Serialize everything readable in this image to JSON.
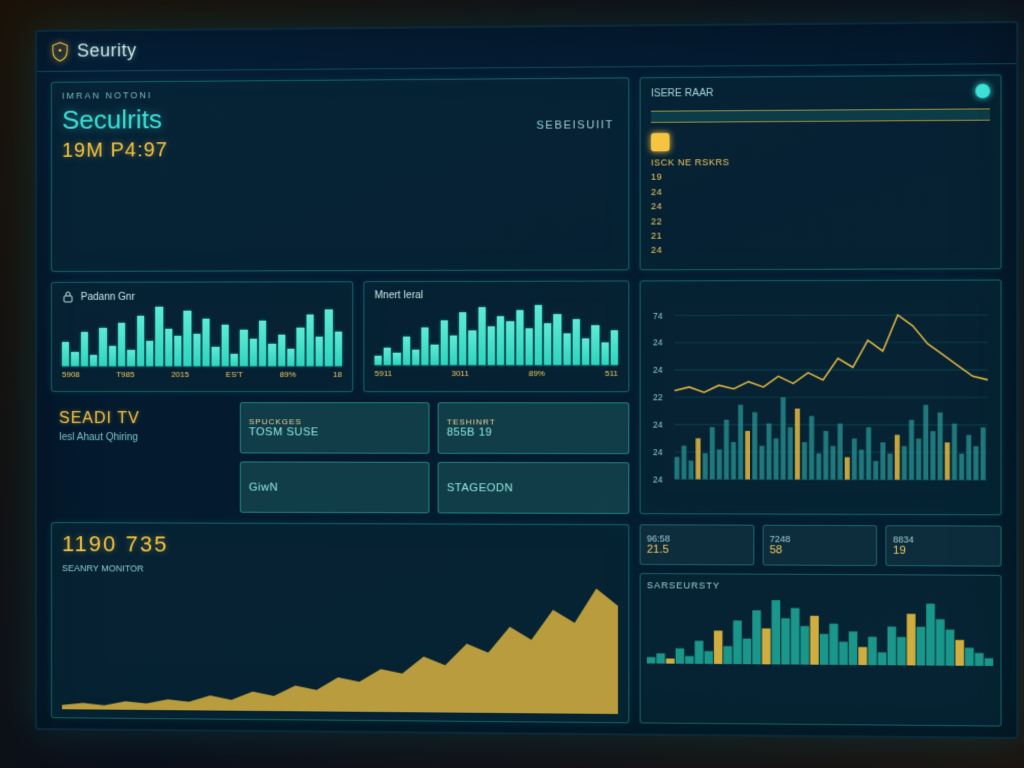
{
  "colors": {
    "bg": "#05203a",
    "teal": "#2dd4bf",
    "teal_light": "#5eead4",
    "amber": "#f5c542",
    "text_dim": "#7bb8b8",
    "text": "#c9e8e8",
    "panel_border": "rgba(45,212,191,0.35)"
  },
  "header": {
    "title": "Seurity"
  },
  "hero": {
    "overline": "IMRAN NOTONI",
    "title": "Seculrits",
    "metric": "19M P4:97",
    "flag": "SEBEISUIIT"
  },
  "rtop": {
    "heading": "ISERE RAAR",
    "status_dot_color": "#3de0d6",
    "status_sq_color": "#f5c542",
    "list": [
      "ISCK NE RSKRS",
      "19",
      "24",
      "24",
      "22",
      "21",
      "24",
      ""
    ]
  },
  "chart1": {
    "type": "bar",
    "title": "Padann Gnr",
    "values": [
      38,
      22,
      55,
      18,
      62,
      33,
      70,
      25,
      80,
      41,
      95,
      60,
      48,
      88,
      52,
      76,
      30,
      66,
      20,
      58,
      44,
      72,
      35,
      50,
      28,
      61,
      82,
      46,
      90,
      54
    ],
    "bar_color": "#2dd4bf",
    "xticks": [
      "5908",
      "T985",
      "2015",
      "ES'T",
      "89%",
      "18"
    ]
  },
  "chart2": {
    "type": "bar",
    "title": "Mnert Ieral",
    "values": [
      14,
      28,
      19,
      45,
      24,
      60,
      32,
      72,
      48,
      84,
      55,
      92,
      62,
      78,
      70,
      88,
      58,
      96,
      66,
      82,
      50,
      74,
      42,
      64,
      36,
      56
    ],
    "bar_color": "#2dd4bf",
    "xticks": [
      "5911",
      "3011",
      "89%",
      "511"
    ]
  },
  "linechart": {
    "type": "line_and_bar",
    "yticks": [
      "74",
      "24",
      "24",
      "22",
      "24",
      "24",
      "24"
    ],
    "line_points": [
      22,
      24,
      21,
      25,
      23,
      27,
      24,
      30,
      26,
      32,
      28,
      40,
      35,
      50,
      44,
      64,
      58,
      48,
      42,
      36,
      30,
      28
    ],
    "line_color": "#f5c542",
    "bars": [
      12,
      18,
      10,
      22,
      14,
      28,
      16,
      32,
      20,
      40,
      26,
      36,
      18,
      30,
      22,
      44,
      28,
      38,
      20,
      34,
      14,
      26,
      18,
      30,
      12,
      22,
      16,
      28,
      10,
      20,
      14,
      24,
      18,
      32,
      22,
      40,
      26,
      36,
      20,
      30,
      14,
      24,
      18,
      28
    ],
    "bar_color": "#268f8f",
    "bar_accent": "#f5c542",
    "grid_color": "rgba(45,212,191,0.15)"
  },
  "kpis": {
    "header_big": "SEADI TV",
    "header_small": "Iesl Ahaut Qhiring",
    "tiles": [
      {
        "label": "SPUCKGES",
        "value": "TOSM SUSE"
      },
      {
        "label": "TESHINRT",
        "value": "855B 19"
      },
      {
        "label": "",
        "value": "GiwN"
      },
      {
        "label": "",
        "value": "STAGEODN"
      }
    ]
  },
  "right_tiles": [
    {
      "label": "96:58",
      "value": "21.5"
    },
    {
      "label": "7248",
      "value": "58"
    },
    {
      "label": "8834",
      "value": "19"
    }
  ],
  "spark": {
    "title": "SARSEURSTY",
    "type": "area_skyline",
    "values": [
      5,
      8,
      4,
      12,
      6,
      18,
      10,
      26,
      14,
      34,
      20,
      42,
      28,
      50,
      36,
      44,
      30,
      38,
      24,
      32,
      18,
      26,
      14,
      22,
      10,
      30,
      22,
      40,
      30,
      48,
      36,
      28,
      20,
      14,
      10,
      6
    ],
    "fill_color": "#1faa9a",
    "accent_color": "#f5c542"
  },
  "bottom": {
    "metric": "1190 735",
    "sub": "SEANRY MONITOR",
    "area": {
      "type": "area",
      "values": [
        2,
        3,
        2,
        4,
        3,
        5,
        4,
        7,
        5,
        9,
        7,
        12,
        10,
        16,
        14,
        20,
        18,
        26,
        22,
        32,
        28,
        40,
        34,
        48,
        42,
        58,
        50
      ],
      "fill_color": "#f5c542",
      "line_color": "#f7d268"
    }
  }
}
